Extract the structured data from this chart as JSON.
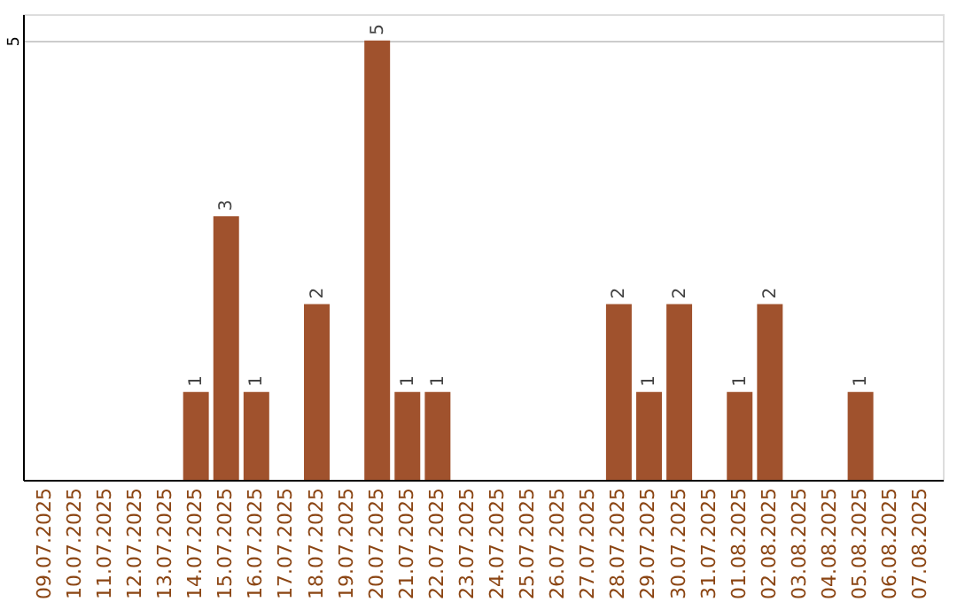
{
  "chart_data": {
    "type": "bar",
    "categories": [
      "09.07.2025",
      "10.07.2025",
      "11.07.2025",
      "12.07.2025",
      "13.07.2025",
      "14.07.2025",
      "15.07.2025",
      "16.07.2025",
      "17.07.2025",
      "18.07.2025",
      "19.07.2025",
      "20.07.2025",
      "21.07.2025",
      "22.07.2025",
      "23.07.2025",
      "24.07.2025",
      "25.07.2025",
      "26.07.2025",
      "27.07.2025",
      "28.07.2025",
      "29.07.2025",
      "30.07.2025",
      "31.07.2025",
      "01.08.2025",
      "02.08.2025",
      "03.08.2025",
      "04.08.2025",
      "05.08.2025",
      "06.08.2025",
      "07.08.2025"
    ],
    "values": [
      0,
      0,
      0,
      0,
      0,
      1,
      3,
      1,
      0,
      2,
      0,
      5,
      1,
      1,
      0,
      0,
      0,
      0,
      0,
      2,
      1,
      2,
      0,
      1,
      2,
      0,
      0,
      1,
      0,
      0
    ],
    "value_labels": [
      null,
      null,
      null,
      null,
      null,
      "1",
      "3",
      "1",
      null,
      "2",
      null,
      "5",
      "1",
      "1",
      null,
      null,
      null,
      null,
      null,
      "2",
      "1",
      "2",
      null,
      "1",
      "2",
      null,
      null,
      "1",
      null,
      null
    ],
    "color": "#a0522d",
    "ylim": [
      0,
      5.3
    ],
    "yticks": [
      5
    ],
    "grid": "y"
  }
}
